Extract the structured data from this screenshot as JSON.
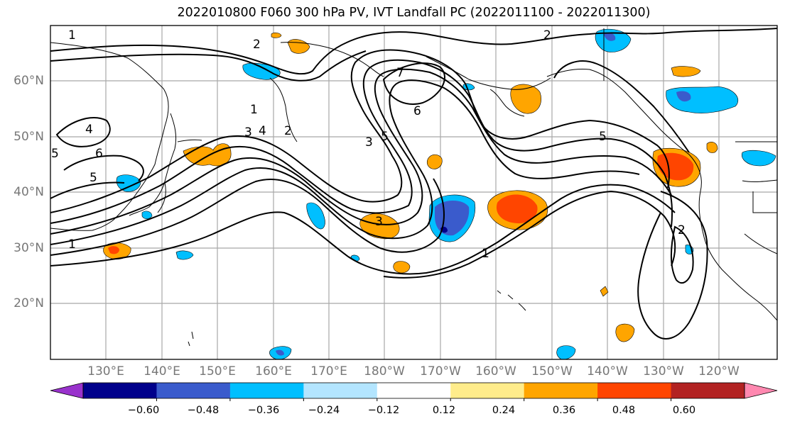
{
  "title": "2022010800 F060 300 hPa PV, IVT Landfall PC (2022011100 - 2022011300)",
  "lon_labels": [
    "130°E",
    "140°E",
    "150°E",
    "160°E",
    "170°E",
    "180°W",
    "170°W",
    "160°W",
    "150°W",
    "140°W",
    "130°W",
    "120°W"
  ],
  "lat_labels": [
    "60°N",
    "50°N",
    "40°N",
    "30°N",
    "20°N"
  ],
  "colorbar": {
    "colors": [
      "#9932cc",
      "#00008b",
      "#3a5bcc",
      "#00bfff",
      "#b3e5ff",
      "#ffffff",
      "#ffec8b",
      "#ffa500",
      "#ff4500",
      "#b22222",
      "#ff88b0"
    ],
    "tick_labels": [
      "−0.60",
      "−0.48",
      "−0.36",
      "−0.24",
      "−0.12",
      "0.12",
      "0.24",
      "0.36",
      "0.48",
      "0.60"
    ]
  },
  "contour_labels": [
    "1",
    "2",
    "2",
    "7",
    "6",
    "3",
    "5",
    "5",
    "4",
    "5",
    "6",
    "1",
    "2",
    "3",
    "4",
    "5",
    "3",
    "1",
    "2",
    "1"
  ]
}
